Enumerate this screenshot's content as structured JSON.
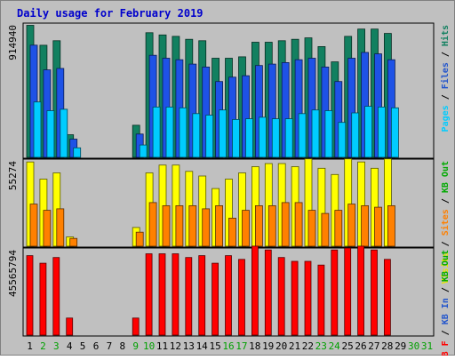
{
  "chart_data": {
    "type": "bar",
    "title": "Daily usage for February 2019",
    "days": [
      "1",
      "2",
      "3",
      "4",
      "5",
      "6",
      "7",
      "8",
      "9",
      "10",
      "11",
      "12",
      "13",
      "14",
      "15",
      "16",
      "17",
      "18",
      "19",
      "20",
      "21",
      "22",
      "23",
      "24",
      "25",
      "26",
      "27",
      "28",
      "29",
      "30",
      "31"
    ],
    "weekend_days": [
      "2",
      "3",
      "9",
      "10",
      "16",
      "17",
      "23",
      "24",
      "30",
      "31"
    ],
    "panels": [
      {
        "id": "top",
        "max_label": "914940",
        "max": 914940,
        "side_labels": [
          {
            "text": "Pages",
            "color": "#00ccff"
          },
          {
            "text": " / ",
            "color": "#000000"
          },
          {
            "text": "Files",
            "color": "#2255cc"
          },
          {
            "text": " / ",
            "color": "#000000"
          },
          {
            "text": "Hits",
            "color": "#128060"
          }
        ],
        "series": [
          {
            "name": "Hits",
            "color": "#128060",
            "values": [
              906000,
              769000,
              800000,
              155000,
              0,
              0,
              0,
              0,
              220000,
              855000,
              840000,
              830000,
              810000,
              800000,
              680000,
              680000,
              690000,
              790000,
              790000,
              800000,
              810000,
              820000,
              760000,
              655000,
              830000,
              880000,
              880000,
              850000,
              0,
              0,
              0
            ]
          },
          {
            "name": "Files",
            "color": "#1e52e6",
            "values": [
              770000,
              600000,
              610000,
              125000,
              0,
              0,
              0,
              0,
              160000,
              700000,
              680000,
              670000,
              640000,
              620000,
              520000,
              550000,
              560000,
              630000,
              640000,
              650000,
              670000,
              680000,
              620000,
              520000,
              680000,
              720000,
              710000,
              670000,
              0,
              0,
              0
            ]
          },
          {
            "name": "Pages",
            "color": "#00ccff",
            "values": [
              380000,
              320000,
              330000,
              65000,
              0,
              0,
              0,
              0,
              85000,
              345000,
              345000,
              340000,
              300000,
              290000,
              325000,
              260000,
              265000,
              275000,
              265000,
              265000,
              300000,
              325000,
              320000,
              240000,
              305000,
              350000,
              345000,
              340000,
              0,
              0,
              0
            ]
          }
        ]
      },
      {
        "id": "middle",
        "max_label": "55274",
        "max": 55274,
        "side_labels": [
          {
            "text": "Visits",
            "color": "#e6e600"
          },
          {
            "text": " / ",
            "color": "#000000"
          },
          {
            "text": "Sites",
            "color": "#ff8000"
          },
          {
            "text": " / ",
            "color": "#000000"
          },
          {
            "text": "KB Out",
            "color": "#00aa00"
          }
        ],
        "series": [
          {
            "name": "Visits",
            "color": "#ffff00",
            "values": [
              54000,
              43000,
              47000,
              6000,
              0,
              0,
              0,
              0,
              12000,
              47000,
              52000,
              52000,
              48000,
              45000,
              37000,
              43000,
              47000,
              51000,
              53000,
              53000,
              51000,
              56000,
              50000,
              46000,
              56000,
              54000,
              50000,
              56000,
              0,
              0,
              0
            ]
          },
          {
            "name": "Sites",
            "color": "#ff8000",
            "values": [
              27000,
              23000,
              24000,
              5000,
              0,
              0,
              0,
              0,
              9000,
              28000,
              26000,
              26000,
              26000,
              24000,
              26000,
              18000,
              23000,
              26000,
              26000,
              28000,
              28000,
              23000,
              21000,
              23000,
              27000,
              26000,
              25000,
              26000,
              0,
              0,
              0
            ]
          }
        ]
      },
      {
        "id": "bottom",
        "max_label": "45565794",
        "max": 45565794,
        "side_labels": [
          {
            "text": "KB F",
            "color": "#ff0000"
          },
          {
            "text": " / ",
            "color": "#000000"
          },
          {
            "text": "KB In",
            "color": "#2255cc"
          },
          {
            "text": " / ",
            "color": "#000000"
          },
          {
            "text": "KB Out",
            "color": "#00aa00"
          }
        ],
        "series": [
          {
            "name": "KB F",
            "color": "#ff0000",
            "values": [
              42000000,
              38000000,
              41000000,
              9000000,
              0,
              0,
              0,
              0,
              9000000,
              43000000,
              43000000,
              43000000,
              41000000,
              42000000,
              38000000,
              42000000,
              40000000,
              47000000,
              45000000,
              41000000,
              39000000,
              39000000,
              37000000,
              45000000,
              46000000,
              47000000,
              45000000,
              40000000,
              0,
              0,
              0
            ]
          }
        ]
      }
    ]
  }
}
